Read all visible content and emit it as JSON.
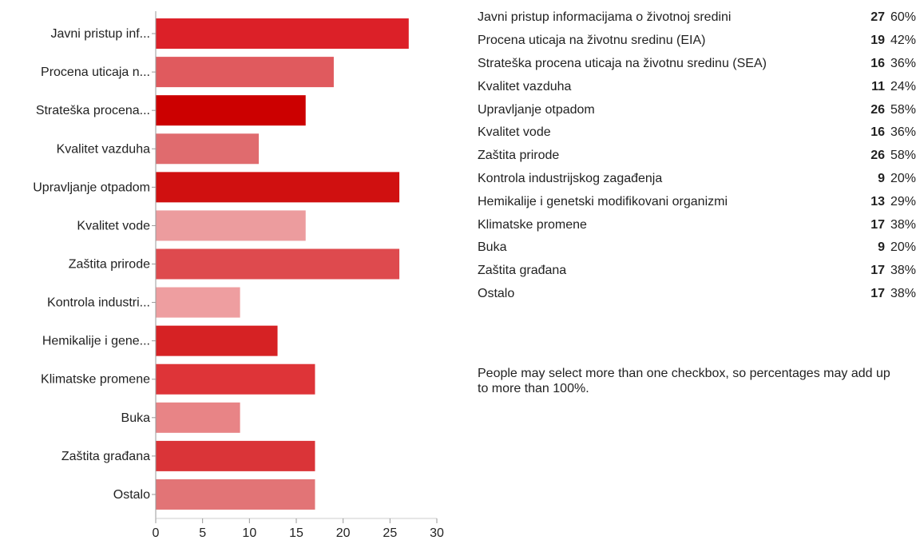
{
  "chart_data": {
    "type": "bar",
    "orientation": "horizontal",
    "categories": [
      "Javni pristup inf...",
      "Procena uticaja n...",
      "Strateška procena...",
      "Kvalitet vazduha",
      "Upravljanje otpadom",
      "Kvalitet vode",
      "Zaštita prirode",
      "Kontrola industri...",
      "Hemikalije i gene...",
      "Klimatske promene",
      "Buka",
      "Zaštita građana",
      "Ostalo"
    ],
    "values": [
      27,
      19,
      16,
      11,
      26,
      16,
      26,
      9,
      13,
      17,
      9,
      17,
      17
    ],
    "colors": [
      "#dc2028",
      "#e05a5e",
      "#cc0000",
      "#e06b6e",
      "#d01010",
      "#ec9c9e",
      "#de4a4e",
      "#ee9ea0",
      "#d62224",
      "#de3438",
      "#e88486",
      "#da3438",
      "#e27476"
    ],
    "xlim": [
      0,
      30
    ],
    "xticks": [
      0,
      5,
      10,
      15,
      20,
      25,
      30
    ],
    "tick_labels": [
      "0",
      "5",
      "10",
      "15",
      "20",
      "25",
      "30"
    ],
    "grid": false
  },
  "summary": {
    "rows": [
      {
        "label": "Javni pristup informacijama o životnoj sredini",
        "count": "27",
        "percent": "60%"
      },
      {
        "label": "Procena uticaja na životnu sredinu (EIA)",
        "count": "19",
        "percent": "42%"
      },
      {
        "label": "Strateška procena uticaja na životnu sredinu (SEA)",
        "count": "16",
        "percent": "36%"
      },
      {
        "label": "Kvalitet vazduha",
        "count": "11",
        "percent": "24%"
      },
      {
        "label": "Upravljanje otpadom",
        "count": "26",
        "percent": "58%"
      },
      {
        "label": "Kvalitet vode",
        "count": "16",
        "percent": "36%"
      },
      {
        "label": "Zaštita prirode",
        "count": "26",
        "percent": "58%"
      },
      {
        "label": "Kontrola industrijskog zagađenja",
        "count": "9",
        "percent": "20%"
      },
      {
        "label": "Hemikalije i genetski modifikovani organizmi",
        "count": "13",
        "percent": "29%"
      },
      {
        "label": "Klimatske promene",
        "count": "17",
        "percent": "38%"
      },
      {
        "label": "Buka",
        "count": "9",
        "percent": "20%"
      },
      {
        "label": "Zaštita građana",
        "count": "17",
        "percent": "38%"
      },
      {
        "label": "Ostalo",
        "count": "17",
        "percent": "38%"
      }
    ],
    "note": "People may select more than one checkbox, so percentages may add up to more than 100%."
  }
}
